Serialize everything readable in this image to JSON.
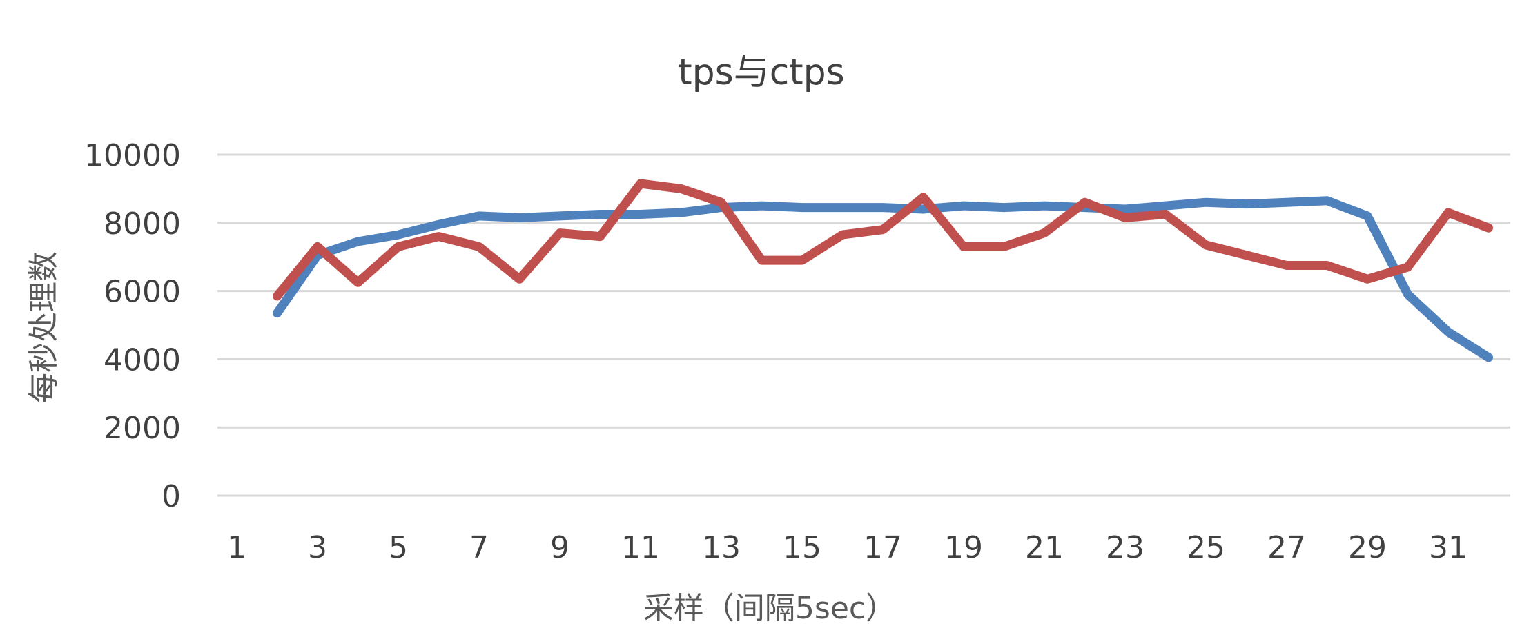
{
  "chart_data": {
    "type": "line",
    "title": "tps与ctps",
    "xlabel": "采样（间隔5sec）",
    "ylabel": "每秒处理数",
    "x": [
      1,
      2,
      3,
      4,
      5,
      6,
      7,
      8,
      9,
      10,
      11,
      12,
      13,
      14,
      15,
      16,
      17,
      18,
      19,
      20,
      21,
      22,
      23,
      24,
      25,
      26,
      27,
      28,
      29,
      30,
      31,
      32
    ],
    "x_tick_labels": [
      "1",
      "3",
      "5",
      "7",
      "9",
      "11",
      "13",
      "15",
      "17",
      "19",
      "21",
      "23",
      "25",
      "27",
      "29",
      "31"
    ],
    "y_ticks": [
      0,
      2000,
      4000,
      6000,
      8000,
      10000
    ],
    "ylim": [
      0,
      10000
    ],
    "grid": true,
    "legend": "none",
    "series": [
      {
        "color": "#4f81bd",
        "values": [
          null,
          5350,
          7050,
          7450,
          7650,
          7950,
          8200,
          8150,
          8200,
          8250,
          8250,
          8300,
          8450,
          8500,
          8450,
          8450,
          8450,
          8400,
          8500,
          8450,
          8500,
          8450,
          8400,
          8500,
          8600,
          8550,
          8600,
          8650,
          8200,
          5900,
          4800,
          4050
        ]
      },
      {
        "color": "#c0504d",
        "values": [
          null,
          5850,
          7300,
          6250,
          7300,
          7600,
          7300,
          6350,
          7700,
          7600,
          9150,
          9000,
          8600,
          6900,
          6900,
          7650,
          7800,
          8750,
          7300,
          7300,
          7700,
          8600,
          8150,
          8250,
          7350,
          7050,
          6750,
          6750,
          6350,
          6700,
          8300,
          7850
        ]
      }
    ]
  }
}
